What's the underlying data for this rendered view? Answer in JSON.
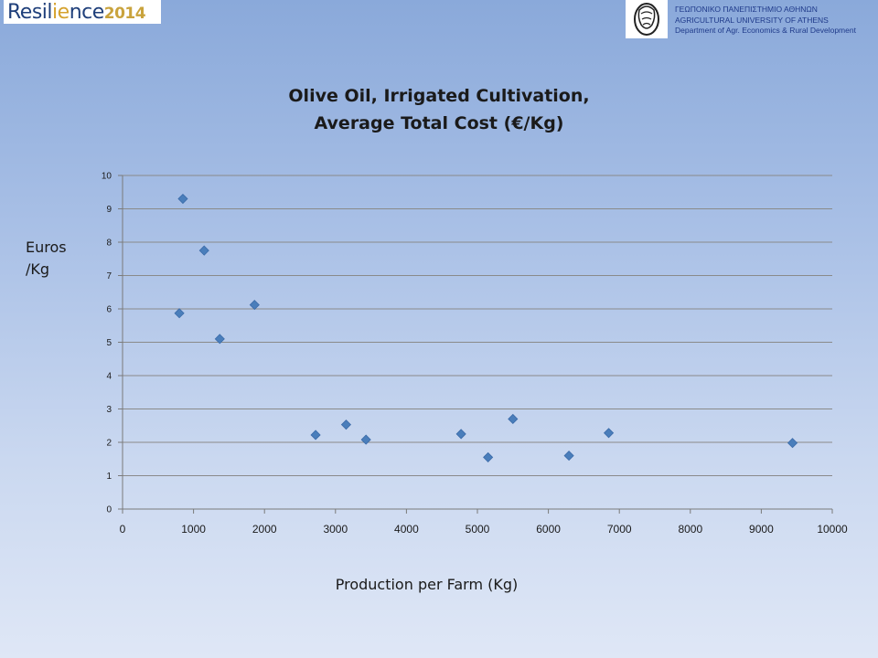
{
  "header": {
    "logo_main": "Resil",
    "logo_accent": "ie",
    "logo_rest": "nce",
    "logo_year": "2014",
    "uni_line1": "ΓΕΩΠΟΝΙΚΟ ΠΑΝΕΠΙΣΤΗΜΙΟ ΑΘΗΝΩΝ",
    "uni_line2": "AGRICULTURAL UNIVERSITY OF ATHENS",
    "uni_line3": "Department of Agr. Economics & Rural Development",
    "emblem_icon": "university-emblem-icon"
  },
  "chart_data": {
    "type": "scatter",
    "title_line1": "Olive Oil, Irrigated Cultivation,",
    "title_line2": "Average Total Cost (€/Kg)",
    "xlabel": "Production per Farm (Kg)",
    "ylabel_line1": "Euros",
    "ylabel_line2": "/Kg",
    "xlim": [
      0,
      10000
    ],
    "ylim": [
      0,
      10
    ],
    "xticks": [
      0,
      1000,
      2000,
      3000,
      4000,
      5000,
      6000,
      7000,
      8000,
      9000,
      10000
    ],
    "yticks": [
      0,
      1,
      2,
      3,
      4,
      5,
      6,
      7,
      8,
      9,
      10
    ],
    "grid": true,
    "marker": "diamond",
    "color": "#4a7ebb",
    "points": [
      {
        "x": 850,
        "y": 9.3
      },
      {
        "x": 1150,
        "y": 7.75
      },
      {
        "x": 800,
        "y": 5.87
      },
      {
        "x": 1370,
        "y": 5.1
      },
      {
        "x": 1860,
        "y": 6.12
      },
      {
        "x": 2720,
        "y": 2.22
      },
      {
        "x": 3150,
        "y": 2.53
      },
      {
        "x": 3430,
        "y": 2.08
      },
      {
        "x": 4770,
        "y": 2.25
      },
      {
        "x": 5150,
        "y": 1.55
      },
      {
        "x": 5500,
        "y": 2.7
      },
      {
        "x": 6290,
        "y": 1.6
      },
      {
        "x": 6850,
        "y": 2.28
      },
      {
        "x": 9440,
        "y": 1.98
      }
    ]
  }
}
